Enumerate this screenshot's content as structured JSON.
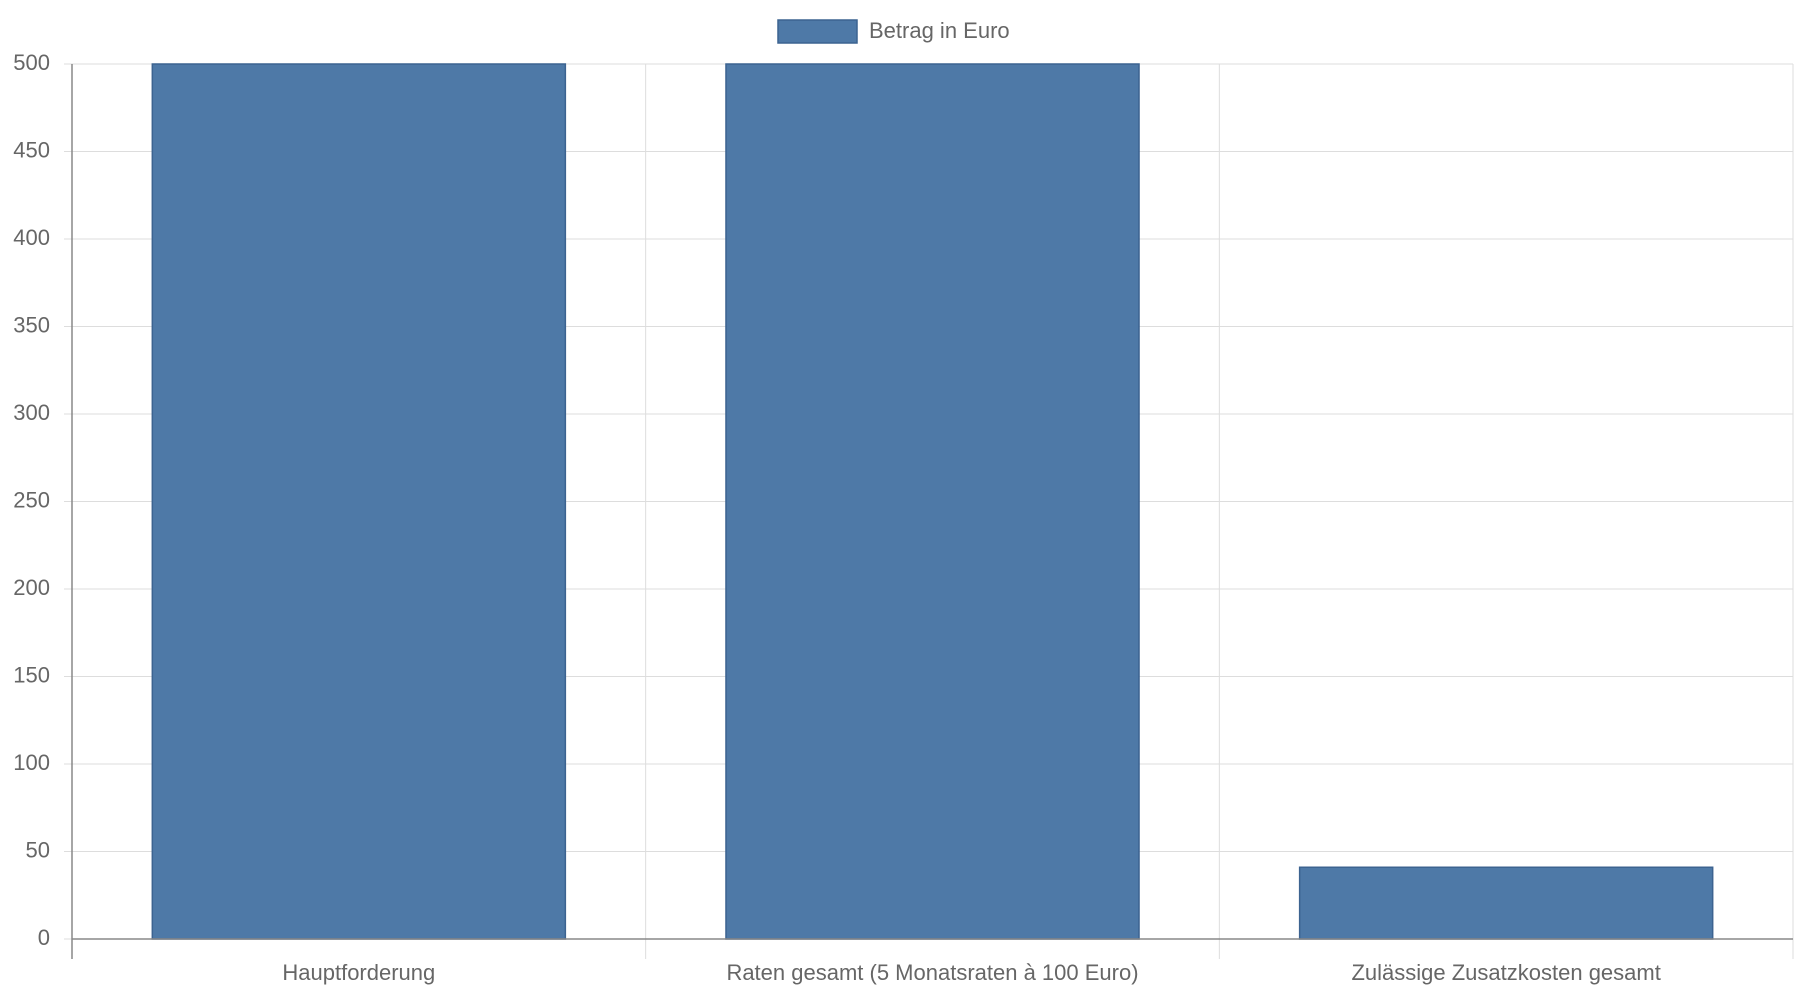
{
  "chart_data": {
    "type": "bar",
    "categories": [
      "Hauptforderung",
      "Raten gesamt (5 Monatsraten à 100 Euro)",
      "Zulässige Zusatzkosten gesamt"
    ],
    "series": [
      {
        "name": "Betrag in Euro",
        "color": "#4e79a7",
        "values": [
          500,
          500,
          41
        ]
      }
    ],
    "ylim": [
      0,
      500
    ],
    "yticks": [
      0,
      50,
      100,
      150,
      200,
      250,
      300,
      350,
      400,
      450,
      500
    ],
    "grid": true,
    "legend": "top"
  }
}
